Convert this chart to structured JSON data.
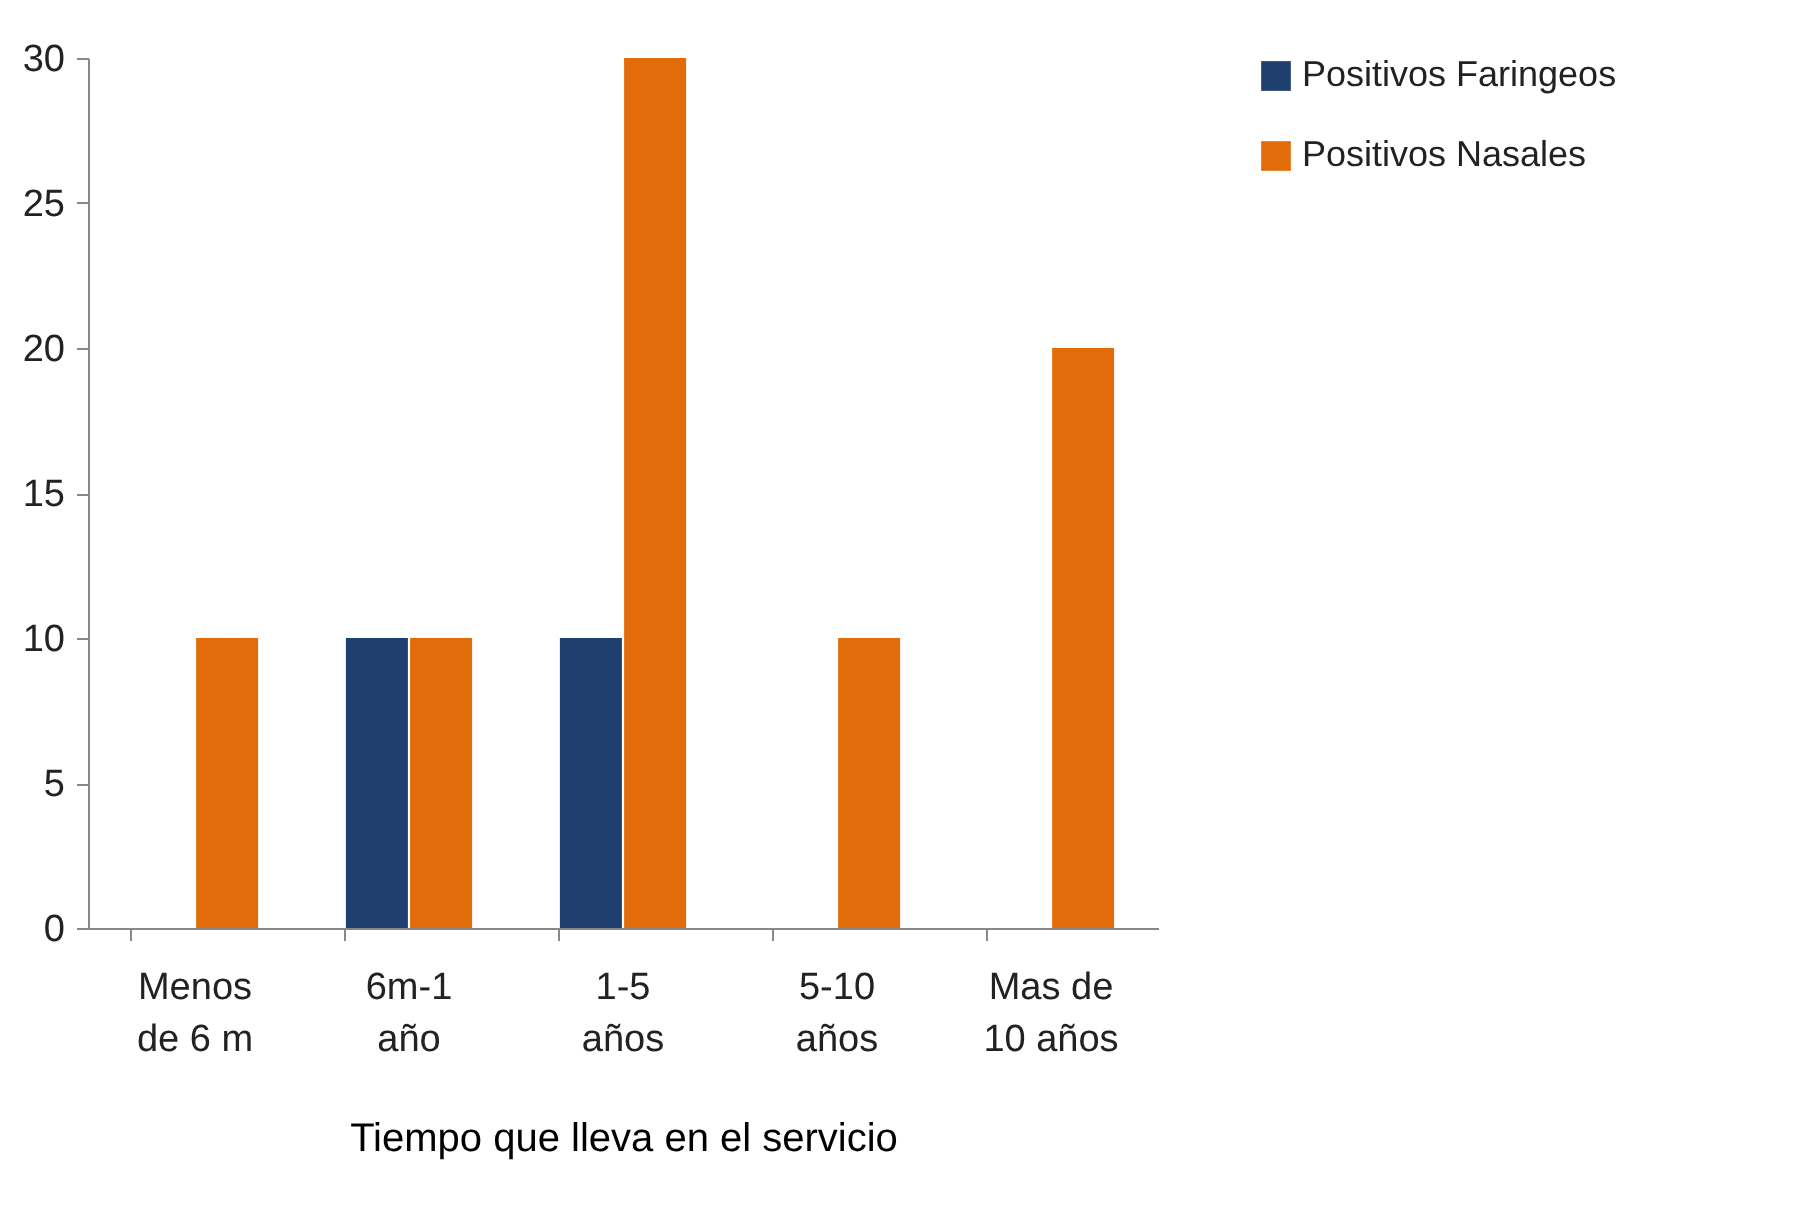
{
  "chart_data": {
    "type": "bar",
    "xlabel": "Tiempo que lleva en el servicio",
    "categories": [
      "Menos de 6 m",
      "6m-1 año",
      "1-5 años",
      "5-10 años",
      "Mas de 10 años"
    ],
    "series": [
      {
        "name": "Positivos Faringeos",
        "color": "#1f3f6e",
        "values": [
          0,
          10,
          10,
          0,
          0
        ]
      },
      {
        "name": "Positivos Nasales",
        "color": "#e36c0a",
        "values": [
          10,
          10,
          30,
          10,
          20
        ]
      }
    ],
    "ylim": [
      0,
      30
    ],
    "yticks": [
      0,
      5,
      10,
      15,
      20,
      25,
      30
    ],
    "grid": false,
    "legend": "right"
  }
}
